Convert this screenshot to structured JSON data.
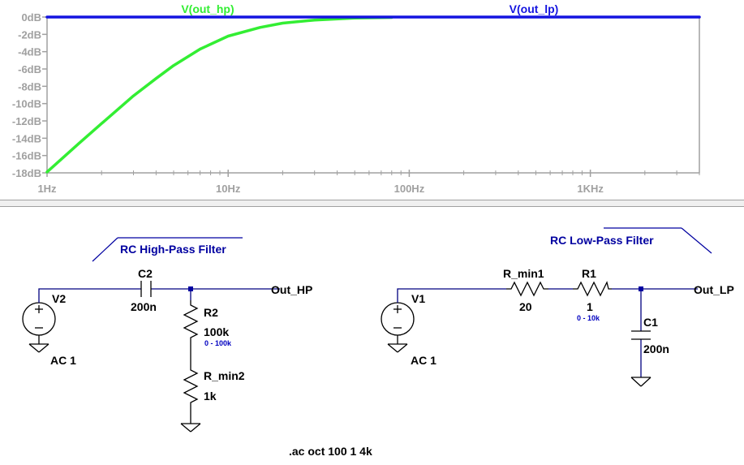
{
  "chart_data": {
    "type": "line",
    "x_scale": "log",
    "x_range": [
      1,
      4000
    ],
    "ylim": [
      -18,
      0
    ],
    "x_ticks": [
      {
        "value": 1,
        "label": "1Hz"
      },
      {
        "value": 10,
        "label": "10Hz"
      },
      {
        "value": 100,
        "label": "100Hz"
      },
      {
        "value": 1000,
        "label": "1KHz"
      }
    ],
    "y_ticks": [
      {
        "value": 0,
        "label": "0dB"
      },
      {
        "value": -2,
        "label": "-2dB"
      },
      {
        "value": -4,
        "label": "-4dB"
      },
      {
        "value": -6,
        "label": "-6dB"
      },
      {
        "value": -8,
        "label": "-8dB"
      },
      {
        "value": -10,
        "label": "-10dB"
      },
      {
        "value": -12,
        "label": "-12dB"
      },
      {
        "value": -14,
        "label": "-14dB"
      },
      {
        "value": -16,
        "label": "-16dB"
      },
      {
        "value": -18,
        "label": "-18dB"
      }
    ],
    "series": [
      {
        "name": "V(out_hp)",
        "color": "#33ee33",
        "x": [
          1,
          1.5,
          2,
          3,
          4,
          5,
          7,
          10,
          15,
          20,
          30,
          50,
          80
        ],
        "y": [
          -17.9,
          -14.6,
          -12.3,
          -9.1,
          -7.1,
          -5.6,
          -3.7,
          -2.2,
          -1.2,
          -0.7,
          -0.35,
          -0.12,
          -0.05
        ]
      },
      {
        "name": "V(out_lp)",
        "color": "#1414e0",
        "x": [
          1,
          10,
          100,
          1000,
          4000
        ],
        "y": [
          0,
          0,
          0,
          0,
          0
        ]
      }
    ],
    "grid": false
  },
  "schematic": {
    "hp_title": "RC High-Pass Filter",
    "lp_title": "RC Low-Pass Filter",
    "v2_ref": "V2",
    "v2_value": "AC 1",
    "c2_ref": "C2",
    "c2_value": "200n",
    "r2_ref": "R2",
    "r2_value": "100k",
    "r2_range": "0 - 100k",
    "rmin2_ref": "R_min2",
    "rmin2_value": "1k",
    "out_hp_label": "Out_HP",
    "v1_ref": "V1",
    "v1_value": "AC 1",
    "rmin1_ref": "R_min1",
    "rmin1_value": "20",
    "r1_ref": "R1",
    "r1_value": "1",
    "r1_range": "0 - 10k",
    "c1_ref": "C1",
    "c1_value": "200n",
    "out_lp_label": "Out_LP",
    "directive": ".ac oct 100 1 4k"
  }
}
